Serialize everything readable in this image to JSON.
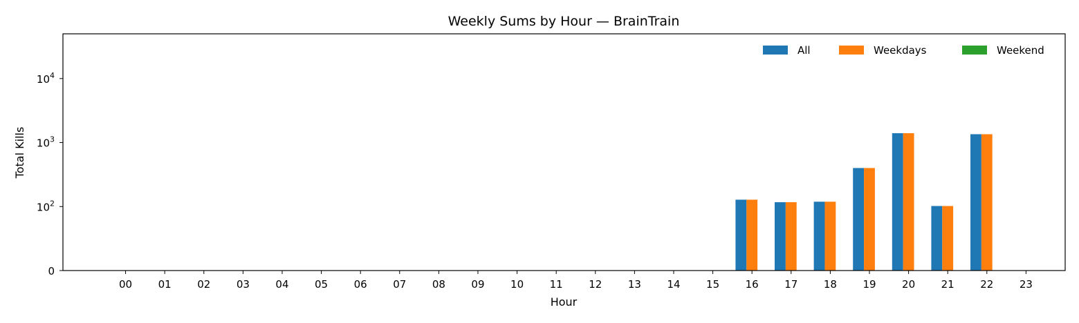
{
  "chart_data": {
    "type": "bar",
    "title": "Weekly Sums by Hour — BrainTrain",
    "xlabel": "Hour",
    "ylabel": "Total Kills",
    "yscale": "symlog",
    "ylim": [
      0,
      50000
    ],
    "y_ticks": [
      {
        "value": 0,
        "base": "0",
        "exp": ""
      },
      {
        "value": 100,
        "base": "10",
        "exp": "2"
      },
      {
        "value": 1000,
        "base": "10",
        "exp": "3"
      },
      {
        "value": 10000,
        "base": "10",
        "exp": "4"
      }
    ],
    "categories": [
      "00",
      "01",
      "02",
      "03",
      "04",
      "05",
      "06",
      "07",
      "08",
      "09",
      "10",
      "11",
      "12",
      "13",
      "14",
      "15",
      "16",
      "17",
      "18",
      "19",
      "20",
      "21",
      "22",
      "23"
    ],
    "series": [
      {
        "name": "All",
        "color": "#1f77b4",
        "values": [
          0,
          0,
          0,
          0,
          0,
          0,
          0,
          0,
          0,
          0,
          0,
          0,
          0,
          0,
          0,
          0,
          128,
          117,
          119,
          400,
          1400,
          102,
          1350,
          0
        ]
      },
      {
        "name": "Weekdays",
        "color": "#ff7f0e",
        "values": [
          0,
          0,
          0,
          0,
          0,
          0,
          0,
          0,
          0,
          0,
          0,
          0,
          0,
          0,
          0,
          0,
          128,
          117,
          119,
          400,
          1400,
          102,
          1350,
          0
        ]
      },
      {
        "name": "Weekend",
        "color": "#2ca02c",
        "values": [
          0,
          0,
          0,
          0,
          0,
          0,
          0,
          0,
          0,
          0,
          0,
          0,
          0,
          0,
          0,
          0,
          0,
          0,
          0,
          0,
          0,
          0,
          0,
          0
        ]
      }
    ],
    "legend": "top-right",
    "grid": false
  }
}
